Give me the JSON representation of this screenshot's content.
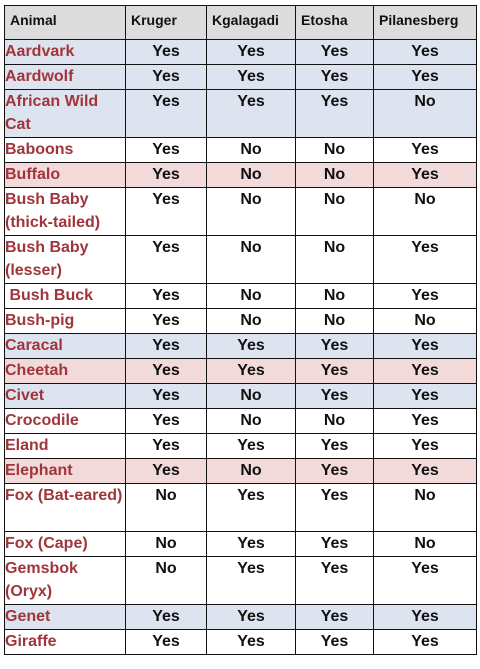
{
  "table": {
    "headers": [
      "Animal",
      "Kruger",
      "Kgalagadi",
      "Etosha",
      "Pilanesberg"
    ],
    "colors": {
      "blue": "#dde3ef",
      "pink": "#f2d9da",
      "white": "#ffffff",
      "header": "#dcdcdc",
      "animal_text": "#a0353a"
    },
    "rows": [
      {
        "animal": "Aardvark",
        "kruger": "Yes",
        "kgalagadi": "Yes",
        "etosha": "Yes",
        "pilanesberg": "Yes",
        "shade": "blue"
      },
      {
        "animal": "Aardwolf",
        "kruger": "Yes",
        "kgalagadi": "Yes",
        "etosha": "Yes",
        "pilanesberg": "Yes",
        "shade": "blue"
      },
      {
        "animal": "African Wild Cat",
        "kruger": "Yes",
        "kgalagadi": "Yes",
        "etosha": "Yes",
        "pilanesberg": "No",
        "shade": "blue"
      },
      {
        "animal": "Baboons",
        "kruger": "Yes",
        "kgalagadi": "No",
        "etosha": "No",
        "pilanesberg": "Yes",
        "shade": "white"
      },
      {
        "animal": "Buffalo",
        "kruger": "Yes",
        "kgalagadi": "No",
        "etosha": "No",
        "pilanesberg": "Yes",
        "shade": "pink"
      },
      {
        "animal": "Bush Baby (thick-tailed)",
        "kruger": "Yes",
        "kgalagadi": "No",
        "etosha": "No",
        "pilanesberg": "No",
        "shade": "white"
      },
      {
        "animal": "Bush Baby (lesser)",
        "kruger": "Yes",
        "kgalagadi": "No",
        "etosha": "No",
        "pilanesberg": "Yes",
        "shade": "white"
      },
      {
        "animal": " Bush Buck",
        "kruger": "Yes",
        "kgalagadi": "No",
        "etosha": "No",
        "pilanesberg": "Yes",
        "shade": "white"
      },
      {
        "animal": "Bush-pig",
        "kruger": "Yes",
        "kgalagadi": "No",
        "etosha": "No",
        "pilanesberg": "No",
        "shade": "white"
      },
      {
        "animal": "Caracal",
        "kruger": "Yes",
        "kgalagadi": "Yes",
        "etosha": "Yes",
        "pilanesberg": "Yes",
        "shade": "blue"
      },
      {
        "animal": "Cheetah",
        "kruger": "Yes",
        "kgalagadi": "Yes",
        "etosha": "Yes",
        "pilanesberg": "Yes",
        "shade": "pink"
      },
      {
        "animal": "Civet",
        "kruger": "Yes",
        "kgalagadi": "No",
        "etosha": "Yes",
        "pilanesberg": "Yes",
        "shade": "blue"
      },
      {
        "animal": "Crocodile",
        "kruger": "Yes",
        "kgalagadi": "No",
        "etosha": "No",
        "pilanesberg": "Yes",
        "shade": "white"
      },
      {
        "animal": "Eland",
        "kruger": "Yes",
        "kgalagadi": "Yes",
        "etosha": "Yes",
        "pilanesberg": "Yes",
        "shade": "white"
      },
      {
        "animal": "Elephant",
        "kruger": "Yes",
        "kgalagadi": "No",
        "etosha": "Yes",
        "pilanesberg": "Yes",
        "shade": "pink"
      },
      {
        "animal": "Fox (Bat-eared)",
        "kruger": "No",
        "kgalagadi": "Yes",
        "etosha": "Yes",
        "pilanesberg": "No",
        "shade": "white"
      },
      {
        "animal": "Fox (Cape)",
        "kruger": "No",
        "kgalagadi": "Yes",
        "etosha": "Yes",
        "pilanesberg": "No",
        "shade": "white"
      },
      {
        "animal": "Gemsbok (Oryx)",
        "kruger": "No",
        "kgalagadi": "Yes",
        "etosha": "Yes",
        "pilanesberg": "Yes",
        "shade": "white"
      },
      {
        "animal": "Genet",
        "kruger": "Yes",
        "kgalagadi": "Yes",
        "etosha": "Yes",
        "pilanesberg": "Yes",
        "shade": "blue"
      },
      {
        "animal": "Giraffe",
        "kruger": "Yes",
        "kgalagadi": "Yes",
        "etosha": "Yes",
        "pilanesberg": "Yes",
        "shade": "white"
      }
    ]
  }
}
